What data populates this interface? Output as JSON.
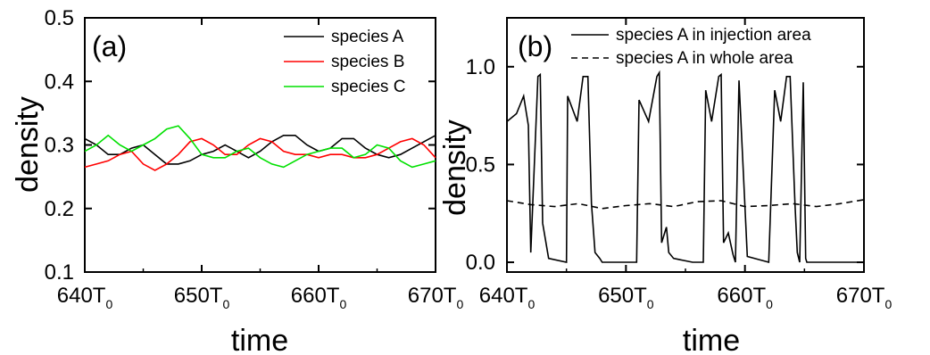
{
  "chart_data": [
    {
      "type": "line",
      "panel_label": "(a)",
      "xlabel": "time",
      "ylabel": "density",
      "x_unit": "T",
      "x_unit_subscript": "0",
      "xlim": [
        640,
        670
      ],
      "ylim": [
        0.1,
        0.5
      ],
      "xticks": [
        640,
        650,
        660,
        670
      ],
      "yticks": [
        "0.1",
        "0.2",
        "0.3",
        "0.4",
        "0.5"
      ],
      "legend_position": "top-right",
      "x": [
        640,
        641,
        642,
        643,
        644,
        645,
        646,
        647,
        648,
        649,
        650,
        651,
        652,
        653,
        654,
        655,
        656,
        657,
        658,
        659,
        660,
        661,
        662,
        663,
        664,
        665,
        666,
        667,
        668,
        669,
        670
      ],
      "series": [
        {
          "name": "species A",
          "color": "#000000",
          "values": [
            0.31,
            0.3,
            0.285,
            0.285,
            0.295,
            0.3,
            0.285,
            0.27,
            0.27,
            0.275,
            0.285,
            0.29,
            0.3,
            0.29,
            0.28,
            0.29,
            0.305,
            0.315,
            0.315,
            0.3,
            0.29,
            0.295,
            0.31,
            0.31,
            0.295,
            0.285,
            0.28,
            0.285,
            0.295,
            0.305,
            0.315
          ]
        },
        {
          "name": "species B",
          "color": "#ff0000",
          "values": [
            0.265,
            0.27,
            0.275,
            0.285,
            0.29,
            0.27,
            0.26,
            0.27,
            0.285,
            0.305,
            0.31,
            0.3,
            0.285,
            0.285,
            0.3,
            0.31,
            0.305,
            0.29,
            0.285,
            0.285,
            0.28,
            0.285,
            0.285,
            0.28,
            0.28,
            0.285,
            0.295,
            0.305,
            0.31,
            0.3,
            0.28
          ]
        },
        {
          "name": "species C",
          "color": "#00e000",
          "values": [
            0.29,
            0.3,
            0.315,
            0.3,
            0.29,
            0.3,
            0.31,
            0.325,
            0.33,
            0.31,
            0.285,
            0.28,
            0.28,
            0.29,
            0.295,
            0.28,
            0.27,
            0.265,
            0.275,
            0.285,
            0.29,
            0.295,
            0.295,
            0.28,
            0.285,
            0.3,
            0.295,
            0.275,
            0.265,
            0.27,
            0.275
          ]
        }
      ]
    },
    {
      "type": "line",
      "panel_label": "(b)",
      "xlabel": "time",
      "ylabel": "density",
      "x_unit": "T",
      "x_unit_subscript": "0",
      "xlim": [
        640,
        670
      ],
      "ylim": [
        -0.05,
        1.25
      ],
      "xticks": [
        640,
        650,
        660,
        670
      ],
      "yticks": [
        "0.0",
        "0.5",
        "1.0"
      ],
      "legend_position": "top-right",
      "series": [
        {
          "name": "species A in injection area",
          "style": "solid",
          "color": "#000000",
          "x": [
            640,
            640.8,
            641.4,
            641.8,
            642.0,
            642.6,
            642.8,
            643.0,
            643.5,
            645.0,
            645.1,
            645.9,
            646.4,
            646.8,
            647.1,
            647.4,
            647.8,
            648.0,
            649.5,
            650.9,
            651.1,
            651.9,
            652.6,
            652.8,
            653.0,
            653.4,
            653.6,
            654.0,
            655.6,
            656.5,
            656.7,
            657.2,
            657.8,
            658.0,
            658.2,
            658.6,
            659.0,
            659.2,
            659.5,
            660.2,
            662.0,
            662.5,
            663.0,
            663.5,
            663.8,
            664.2,
            664.4,
            664.6,
            664.9,
            665.1,
            665.2,
            667.0,
            670.0
          ],
          "values": [
            0.72,
            0.76,
            0.85,
            0.7,
            0.05,
            0.95,
            0.96,
            0.2,
            0.02,
            0.0,
            0.85,
            0.72,
            0.95,
            0.95,
            0.3,
            0.05,
            0.02,
            0.0,
            0.0,
            0.0,
            0.83,
            0.72,
            0.95,
            0.97,
            0.1,
            0.18,
            0.05,
            0.02,
            0.0,
            0.0,
            0.88,
            0.72,
            0.95,
            0.96,
            0.1,
            0.15,
            0.04,
            0.0,
            0.93,
            0.03,
            0.0,
            0.88,
            0.72,
            0.95,
            0.95,
            0.3,
            0.05,
            0.0,
            0.92,
            0.02,
            0.0,
            0.0,
            0.0
          ]
        },
        {
          "name": "species A in whole area",
          "style": "dashed",
          "color": "#000000",
          "x": [
            640,
            642,
            644,
            646,
            648,
            650,
            652,
            654,
            656,
            658,
            660,
            662,
            664,
            666,
            668,
            670
          ],
          "values": [
            0.315,
            0.295,
            0.285,
            0.3,
            0.275,
            0.29,
            0.3,
            0.285,
            0.31,
            0.315,
            0.285,
            0.29,
            0.3,
            0.285,
            0.3,
            0.32
          ]
        }
      ]
    }
  ]
}
